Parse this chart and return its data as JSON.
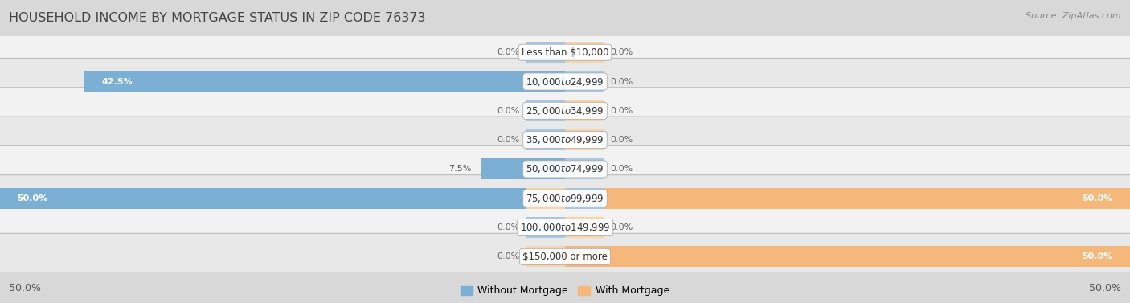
{
  "title": "HOUSEHOLD INCOME BY MORTGAGE STATUS IN ZIP CODE 76373",
  "source": "Source: ZipAtlas.com",
  "categories": [
    "Less than $10,000",
    "$10,000 to $24,999",
    "$25,000 to $34,999",
    "$35,000 to $49,999",
    "$50,000 to $74,999",
    "$75,000 to $99,999",
    "$100,000 to $149,999",
    "$150,000 or more"
  ],
  "without_mortgage": [
    0.0,
    42.5,
    0.0,
    0.0,
    7.5,
    50.0,
    0.0,
    0.0
  ],
  "with_mortgage": [
    0.0,
    0.0,
    0.0,
    0.0,
    0.0,
    50.0,
    0.0,
    50.0
  ],
  "color_without": "#7BAFD4",
  "color_with": "#F5B87A",
  "color_without_stub": "#A8C8E0",
  "color_with_stub": "#F8D4A8",
  "axis_limit": 50.0,
  "stub_size": 3.5,
  "title_fontsize": 11.5,
  "label_fontsize": 8.0,
  "cat_fontsize": 8.5,
  "tick_fontsize": 9.0,
  "row_colors": [
    "#f2f2f2",
    "#e8e8e8"
  ],
  "background_color": "#d8d8d8"
}
